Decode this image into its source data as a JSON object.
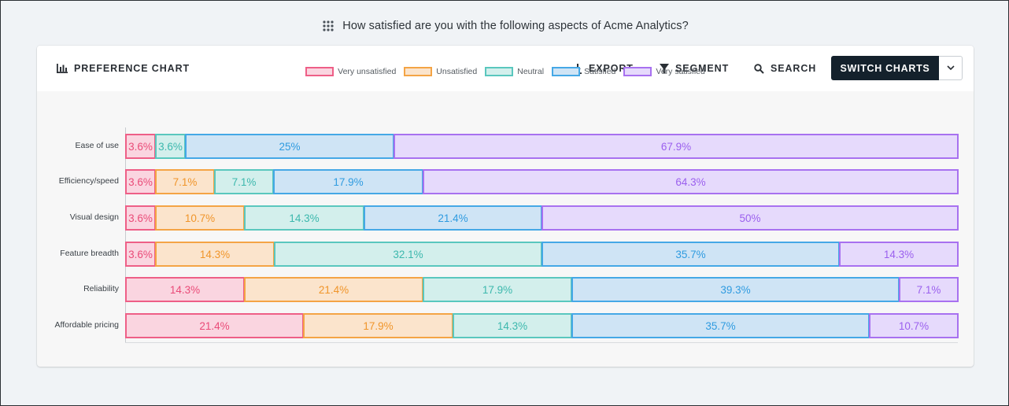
{
  "question": {
    "text": "How satisfied are you with the following aspects of Acme Analytics?",
    "icon": "drag-handle-icon"
  },
  "toolbar": {
    "title": "PREFERENCE CHART",
    "title_icon": "bar-chart-icon",
    "export_label": "EXPORT",
    "segment_label": "SEGMENT",
    "search_label": "SEARCH",
    "switch_label": "SWITCH CHARTS"
  },
  "colors": {
    "Very unsatisfied": {
      "border": "#ee5f87",
      "fill": "#fad5e0",
      "text": "#ea4b78"
    },
    "Unsatisfied": {
      "border": "#f4a445",
      "fill": "#fbe4cc",
      "text": "#f0952a"
    },
    "Neutral": {
      "border": "#5ac7be",
      "fill": "#d3efec",
      "text": "#3cb8ad"
    },
    "Satisfied": {
      "border": "#45a8e6",
      "fill": "#cfe4f5",
      "text": "#2f9be0"
    },
    "Very satisfied": {
      "border": "#a871f0",
      "fill": "#e6dafc",
      "text": "#9b60ee"
    }
  },
  "chart_data": {
    "type": "bar",
    "orientation": "horizontal",
    "stacked": true,
    "normalized": true,
    "categories": [
      "Ease of use",
      "Efficiency/speed",
      "Visual design",
      "Feature breadth",
      "Reliability",
      "Affordable pricing"
    ],
    "series": [
      {
        "name": "Very unsatisfied",
        "values": [
          3.6,
          3.6,
          3.6,
          3.6,
          14.3,
          21.4
        ],
        "labels": [
          "3.6%",
          "3.6%",
          "3.6%",
          "3.6%",
          "14.3%",
          "21.4%"
        ]
      },
      {
        "name": "Unsatisfied",
        "values": [
          0,
          7.1,
          10.7,
          14.3,
          21.4,
          17.9
        ],
        "labels": [
          "",
          "7.1%",
          "10.7%",
          "14.3%",
          "21.4%",
          "17.9%"
        ]
      },
      {
        "name": "Neutral",
        "values": [
          3.6,
          7.1,
          14.3,
          32.1,
          17.9,
          14.3
        ],
        "labels": [
          "3.6%",
          "7.1%",
          "14.3%",
          "32.1%",
          "17.9%",
          "14.3%"
        ]
      },
      {
        "name": "Satisfied",
        "values": [
          25,
          17.9,
          21.4,
          35.7,
          39.3,
          35.7
        ],
        "labels": [
          "25%",
          "17.9%",
          "21.4%",
          "35.7%",
          "39.3%",
          "35.7%"
        ]
      },
      {
        "name": "Very satisfied",
        "values": [
          67.9,
          64.3,
          50,
          14.3,
          7.1,
          10.7
        ],
        "labels": [
          "67.9%",
          "64.3%",
          "50%",
          "14.3%",
          "7.1%",
          "10.7%"
        ]
      }
    ],
    "xlim": [
      0,
      100
    ],
    "legend": "top-center",
    "grid": false
  }
}
